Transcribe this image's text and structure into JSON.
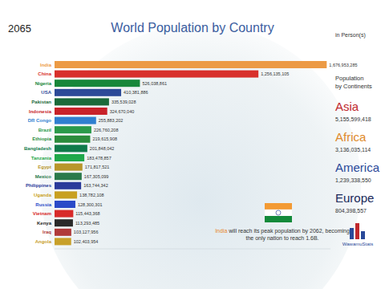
{
  "chart_data": {
    "type": "bar",
    "orientation": "horizontal",
    "title": "World Population by Country",
    "categories": [
      "India",
      "China",
      "Nigeria",
      "USA",
      "Pakistan",
      "Indonesia",
      "DR Congo",
      "Brazil",
      "Ethiopia",
      "Bangladesh",
      "Tanzania",
      "Egypt",
      "Mexico",
      "Philippines",
      "Uganda",
      "Russia",
      "Vietnam",
      "Kenya",
      "Iraq",
      "Angola"
    ],
    "values": [
      1676953285,
      1256135105,
      526038861,
      410381886,
      335539028,
      324670040,
      255883202,
      226760208,
      219615908,
      201848042,
      183478857,
      171817521,
      167305099,
      163744342,
      138782108,
      128300301,
      115443368,
      113293485,
      103127956,
      102403954
    ],
    "value_labels": [
      "1,676,953,285",
      "1,256,135,105",
      "526,038,861",
      "410,381,886",
      "335,539,028",
      "324,670,040",
      "255,883,202",
      "226,760,208",
      "219,615,908",
      "201,848,042",
      "183,478,857",
      "171,817,521",
      "167,305,099",
      "163,744,342",
      "138,782,108",
      "128,300,301",
      "115,443,368",
      "113,293,485",
      "103,127,956",
      "102,403,954"
    ],
    "colors": [
      "#ec9a45",
      "#d8302c",
      "#17873a",
      "#2c4a98",
      "#1b6a3a",
      "#c8222a",
      "#2f7fd0",
      "#2a9a4a",
      "#2b8c3c",
      "#0f7a4a",
      "#1fa84a",
      "#b8962a",
      "#2a7a4a",
      "#2a3a9a",
      "#c8a020",
      "#2a4ac8",
      "#d82a2a",
      "#2a2a2a",
      "#b03a3a",
      "#c8a02a"
    ],
    "xlim": [
      0,
      1700000000
    ],
    "data_labels": true,
    "tick_labels": "y",
    "grid": false
  },
  "year": "2065",
  "unit_label": "in Person(s)",
  "continents": {
    "title_lines": [
      "Population",
      "by Continents"
    ],
    "items": [
      {
        "name": "Asia",
        "value": 5155599418,
        "value_label": "5,155,599,418"
      },
      {
        "name": "Africa",
        "value": 3136035114,
        "value_label": "3,136,035,114"
      },
      {
        "name": "America",
        "value": 1239338550,
        "value_label": "1,239,338,550"
      },
      {
        "name": "Europe",
        "value": 804398557,
        "value_label": "804,398,557"
      }
    ]
  },
  "annotation": {
    "lead": "India",
    "lines": [
      "will reach its peak population by 2062, becoming",
      "the only nation to reach 1.6B."
    ]
  },
  "logo": "WawamuStats"
}
